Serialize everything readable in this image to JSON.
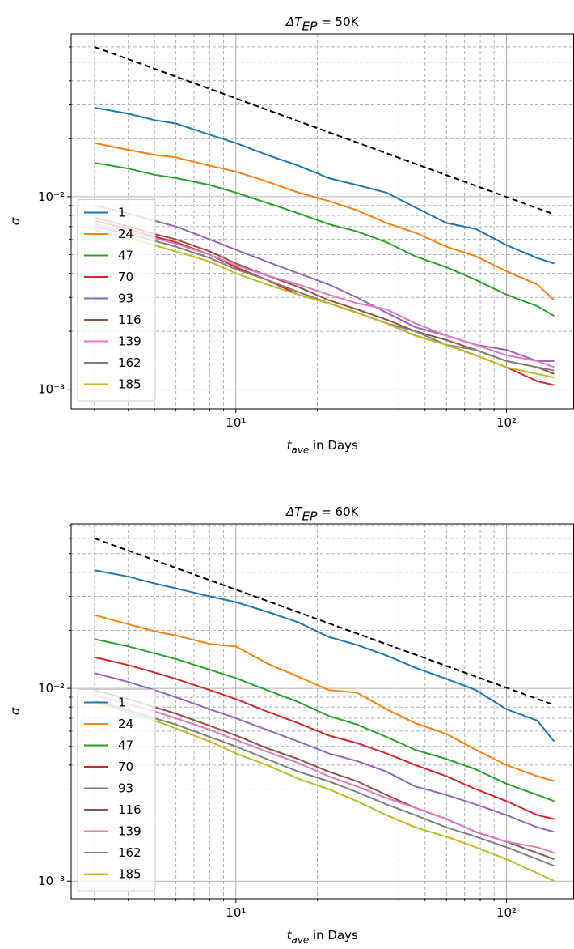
{
  "chart_data": [
    {
      "type": "line",
      "title": {
        "main": "ΔT",
        "sub": "EP",
        "rest": " = 50K"
      },
      "xlabel": {
        "main": "t",
        "sub": "ave",
        "rest": " in Days"
      },
      "ylabel": "σ",
      "xscale": "log",
      "yscale": "log",
      "grid": true,
      "legend": "lower left",
      "xlim": [
        2.46,
        177
      ],
      "ylim": [
        0.00079,
        0.07
      ],
      "xticks": [
        {
          "value": 10,
          "label": "10¹"
        },
        {
          "value": 100,
          "label": "10²"
        }
      ],
      "yticks": [
        {
          "value": 0.001,
          "label": "10⁻³"
        },
        {
          "value": 0.01,
          "label": "10⁻²"
        }
      ],
      "xminorticks": [
        3,
        4,
        5,
        6,
        7,
        8,
        9,
        20,
        30,
        40,
        50,
        60,
        70,
        80,
        90
      ],
      "yminorticks": [
        0.002,
        0.003,
        0.004,
        0.005,
        0.006,
        0.007,
        0.008,
        0.009,
        0.02,
        0.03,
        0.04,
        0.05,
        0.06
      ],
      "x": [
        3,
        4,
        5,
        6,
        8,
        10,
        13,
        17,
        22,
        28,
        36,
        46,
        60,
        77,
        100,
        130,
        150
      ],
      "reference": {
        "x": [
          3,
          150
        ],
        "values": [
          0.06,
          0.0081
        ],
        "color": "#000000"
      },
      "series": [
        {
          "name": "1",
          "color": "#1f77b4",
          "values": [
            0.029,
            0.027,
            0.025,
            0.024,
            0.021,
            0.019,
            0.0165,
            0.0145,
            0.0125,
            0.0115,
            0.0105,
            0.0088,
            0.0073,
            0.0068,
            0.0056,
            0.0048,
            0.0045
          ]
        },
        {
          "name": "24",
          "color": "#ff7f0e",
          "values": [
            0.019,
            0.0175,
            0.0165,
            0.016,
            0.0145,
            0.0135,
            0.012,
            0.0105,
            0.0095,
            0.0085,
            0.0073,
            0.0065,
            0.0055,
            0.0049,
            0.0041,
            0.0035,
            0.0029
          ]
        },
        {
          "name": "47",
          "color": "#2ca02c",
          "values": [
            0.015,
            0.014,
            0.013,
            0.0125,
            0.0115,
            0.0105,
            0.0093,
            0.0082,
            0.0072,
            0.0066,
            0.0058,
            0.0049,
            0.0043,
            0.0037,
            0.0031,
            0.0027,
            0.0024
          ]
        },
        {
          "name": "70",
          "color": "#d62728",
          "values": [
            0.0075,
            0.0068,
            0.0062,
            0.0058,
            0.005,
            0.0043,
            0.0037,
            0.0031,
            0.0028,
            0.0025,
            0.0022,
            0.0019,
            0.0017,
            0.0015,
            0.0013,
            0.0011,
            0.00105
          ]
        },
        {
          "name": "93",
          "color": "#9467bd",
          "values": [
            0.009,
            0.0082,
            0.0075,
            0.007,
            0.006,
            0.0053,
            0.0046,
            0.004,
            0.0035,
            0.003,
            0.0025,
            0.0021,
            0.0019,
            0.0017,
            0.0016,
            0.0014,
            0.0014
          ]
        },
        {
          "name": "116",
          "color": "#8c564b",
          "values": [
            0.0078,
            0.007,
            0.0064,
            0.006,
            0.0052,
            0.0045,
            0.0039,
            0.0034,
            0.0029,
            0.0026,
            0.0023,
            0.002,
            0.0018,
            0.0016,
            0.0014,
            0.0013,
            0.0012
          ]
        },
        {
          "name": "139",
          "color": "#e377c2",
          "values": [
            0.0072,
            0.0066,
            0.0061,
            0.0057,
            0.005,
            0.0044,
            0.0039,
            0.0035,
            0.0031,
            0.0028,
            0.0026,
            0.0022,
            0.0019,
            0.0017,
            0.0015,
            0.0014,
            0.0013
          ]
        },
        {
          "name": "162",
          "color": "#7f7f7f",
          "values": [
            0.007,
            0.0064,
            0.0059,
            0.0055,
            0.0048,
            0.0042,
            0.0037,
            0.0032,
            0.0028,
            0.0025,
            0.0022,
            0.002,
            0.0017,
            0.0016,
            0.0014,
            0.0013,
            0.00125
          ]
        },
        {
          "name": "185",
          "color": "#bcbd22",
          "values": [
            0.0067,
            0.0061,
            0.0056,
            0.0052,
            0.0046,
            0.004,
            0.0035,
            0.0031,
            0.0028,
            0.0025,
            0.0022,
            0.0019,
            0.0017,
            0.0015,
            0.0013,
            0.0012,
            0.00115
          ]
        }
      ]
    },
    {
      "type": "line",
      "title": {
        "main": "ΔT",
        "sub": "EP",
        "rest": " = 60K"
      },
      "xlabel": {
        "main": "t",
        "sub": "ave",
        "rest": " in Days"
      },
      "ylabel": "σ",
      "xscale": "log",
      "yscale": "log",
      "grid": true,
      "legend": "lower left",
      "xlim": [
        2.46,
        177
      ],
      "ylim": [
        0.00081,
        0.0713
      ],
      "xticks": [
        {
          "value": 10,
          "label": "10¹"
        },
        {
          "value": 100,
          "label": "10²"
        }
      ],
      "yticks": [
        {
          "value": 0.001,
          "label": "10⁻³"
        },
        {
          "value": 0.01,
          "label": "10⁻²"
        }
      ],
      "xminorticks": [
        3,
        4,
        5,
        6,
        7,
        8,
        9,
        20,
        30,
        40,
        50,
        60,
        70,
        80,
        90
      ],
      "yminorticks": [
        0.002,
        0.003,
        0.004,
        0.005,
        0.006,
        0.007,
        0.008,
        0.009,
        0.02,
        0.03,
        0.04,
        0.05,
        0.06,
        0.07
      ],
      "x": [
        3,
        4,
        5,
        6,
        8,
        10,
        13,
        17,
        22,
        28,
        36,
        46,
        60,
        77,
        100,
        130,
        150
      ],
      "reference": {
        "x": [
          3,
          150
        ],
        "values": [
          0.06,
          0.0082
        ],
        "color": "#000000"
      },
      "series": [
        {
          "name": "1",
          "color": "#1f77b4",
          "values": [
            0.041,
            0.038,
            0.035,
            0.033,
            0.03,
            0.028,
            0.025,
            0.022,
            0.0185,
            0.0168,
            0.0148,
            0.0128,
            0.0112,
            0.0098,
            0.0078,
            0.0068,
            0.0053
          ]
        },
        {
          "name": "24",
          "color": "#ff7f0e",
          "values": [
            0.024,
            0.0215,
            0.0198,
            0.0188,
            0.017,
            0.0165,
            0.0135,
            0.0115,
            0.0098,
            0.0095,
            0.0078,
            0.0066,
            0.0058,
            0.0048,
            0.004,
            0.0035,
            0.0033
          ]
        },
        {
          "name": "47",
          "color": "#2ca02c",
          "values": [
            0.018,
            0.0165,
            0.0152,
            0.0142,
            0.0125,
            0.0113,
            0.0098,
            0.0085,
            0.0072,
            0.0065,
            0.0056,
            0.0048,
            0.0043,
            0.0038,
            0.0032,
            0.0028,
            0.0026
          ]
        },
        {
          "name": "70",
          "color": "#d62728",
          "values": [
            0.0145,
            0.0132,
            0.0121,
            0.0112,
            0.0098,
            0.0088,
            0.0076,
            0.0066,
            0.0057,
            0.0052,
            0.0046,
            0.004,
            0.0035,
            0.003,
            0.0026,
            0.0022,
            0.0021
          ]
        },
        {
          "name": "93",
          "color": "#9467bd",
          "values": [
            0.012,
            0.0108,
            0.0098,
            0.009,
            0.0078,
            0.007,
            0.0061,
            0.0053,
            0.0046,
            0.0042,
            0.0037,
            0.0031,
            0.0028,
            0.0025,
            0.0022,
            0.0019,
            0.0018
          ]
        },
        {
          "name": "116",
          "color": "#8c564b",
          "values": [
            0.0098,
            0.0088,
            0.008,
            0.0074,
            0.0064,
            0.0057,
            0.0049,
            0.0043,
            0.0037,
            0.0033,
            0.0028,
            0.0024,
            0.0021,
            0.0018,
            0.0016,
            0.0014,
            0.0013
          ]
        },
        {
          "name": "139",
          "color": "#e377c2",
          "values": [
            0.0092,
            0.0083,
            0.0076,
            0.007,
            0.0061,
            0.0054,
            0.0047,
            0.0041,
            0.0035,
            0.0031,
            0.0027,
            0.0024,
            0.0021,
            0.0018,
            0.0016,
            0.0015,
            0.0014
          ]
        },
        {
          "name": "162",
          "color": "#7f7f7f",
          "values": [
            0.0086,
            0.0077,
            0.007,
            0.0065,
            0.0056,
            0.005,
            0.0043,
            0.0037,
            0.0033,
            0.0029,
            0.0025,
            0.0022,
            0.0019,
            0.0017,
            0.0015,
            0.0013,
            0.0012
          ]
        },
        {
          "name": "185",
          "color": "#bcbd22",
          "values": [
            0.0085,
            0.0075,
            0.0068,
            0.0062,
            0.0053,
            0.0046,
            0.004,
            0.0034,
            0.003,
            0.0026,
            0.0022,
            0.0019,
            0.0017,
            0.0015,
            0.0013,
            0.0011,
            0.001
          ]
        }
      ]
    }
  ]
}
